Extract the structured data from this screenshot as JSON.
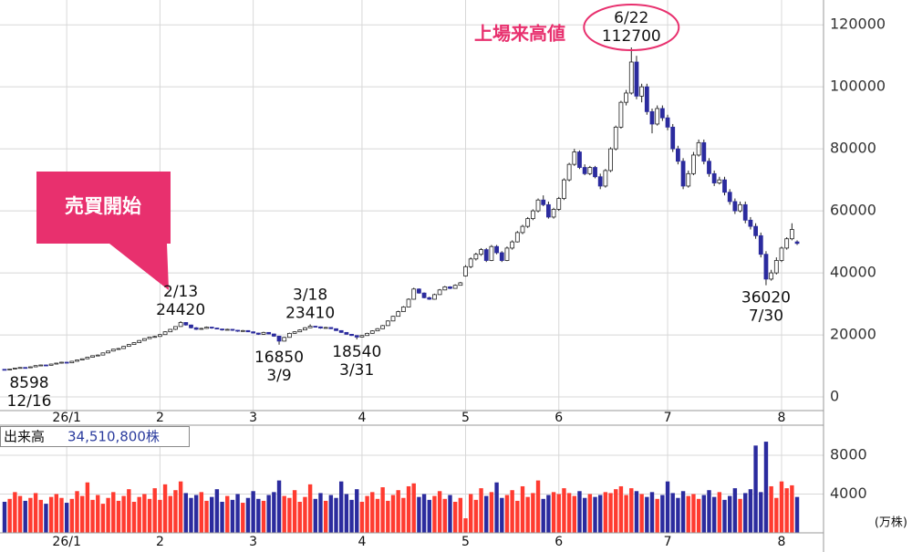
{
  "chart_data": {
    "type": "candlestick",
    "categories": [
      null,
      null,
      null,
      null,
      null,
      null,
      null,
      null,
      null,
      null,
      null,
      null,
      "26/1",
      null,
      null,
      null,
      null,
      null,
      null,
      null,
      null,
      null,
      null,
      null,
      null,
      null,
      null,
      null,
      null,
      null,
      "2",
      null,
      null,
      null,
      null,
      null,
      null,
      null,
      null,
      null,
      null,
      null,
      null,
      null,
      null,
      null,
      null,
      null,
      "3",
      null,
      null,
      null,
      null,
      null,
      null,
      null,
      null,
      null,
      null,
      null,
      null,
      null,
      null,
      null,
      null,
      null,
      null,
      null,
      null,
      "4",
      null,
      null,
      null,
      null,
      null,
      null,
      null,
      null,
      null,
      null,
      null,
      null,
      null,
      null,
      null,
      null,
      null,
      null,
      null,
      "5",
      null,
      null,
      null,
      null,
      null,
      null,
      null,
      null,
      null,
      null,
      null,
      null,
      null,
      null,
      null,
      null,
      null,
      "6",
      null,
      null,
      null,
      null,
      null,
      null,
      null,
      null,
      null,
      null,
      null,
      null,
      null,
      null,
      null,
      null,
      null,
      null,
      null,
      null,
      "7",
      null,
      null,
      null,
      null,
      null,
      null,
      null,
      null,
      null,
      null,
      null,
      null,
      null,
      null,
      null,
      null,
      null,
      null,
      null,
      null,
      null,
      "8",
      null,
      null,
      null
    ],
    "ohlc": [
      [
        8900,
        9000,
        8598,
        8800
      ],
      [
        8800,
        9100,
        8700,
        9000
      ],
      [
        9000,
        9400,
        8950,
        9300
      ],
      [
        9300,
        9600,
        9200,
        9500
      ],
      [
        9500,
        9600,
        9300,
        9400
      ],
      [
        9400,
        9800,
        9350,
        9700
      ],
      [
        9700,
        10200,
        9650,
        10100
      ],
      [
        10100,
        10400,
        10000,
        10300
      ],
      [
        10300,
        10400,
        10100,
        10200
      ],
      [
        10200,
        10700,
        10150,
        10600
      ],
      [
        10600,
        11000,
        10500,
        10900
      ],
      [
        10900,
        11300,
        10800,
        11200
      ],
      [
        11200,
        11300,
        10900,
        11000
      ],
      [
        11000,
        11600,
        10950,
        11500
      ],
      [
        11500,
        12000,
        11400,
        11900
      ],
      [
        11900,
        12400,
        11800,
        12300
      ],
      [
        12300,
        12900,
        12200,
        12800
      ],
      [
        12800,
        13400,
        12700,
        13300
      ],
      [
        13300,
        13700,
        13200,
        13500
      ],
      [
        13500,
        14300,
        13400,
        14200
      ],
      [
        14200,
        14900,
        14100,
        14800
      ],
      [
        14800,
        15500,
        14700,
        15400
      ],
      [
        15400,
        15800,
        15200,
        15600
      ],
      [
        15600,
        16400,
        15500,
        16300
      ],
      [
        16300,
        17000,
        16200,
        16900
      ],
      [
        16900,
        17600,
        16800,
        17500
      ],
      [
        17500,
        18300,
        17400,
        18200
      ],
      [
        18200,
        18900,
        18100,
        18800
      ],
      [
        18800,
        19400,
        18700,
        19300
      ],
      [
        19300,
        19700,
        19100,
        19500
      ],
      [
        19500,
        20300,
        19400,
        20100
      ],
      [
        20100,
        21200,
        20000,
        21000
      ],
      [
        21000,
        21900,
        20900,
        21800
      ],
      [
        21800,
        22800,
        21600,
        22700
      ],
      [
        22700,
        24420,
        22600,
        24000
      ],
      [
        24000,
        24100,
        23000,
        23200
      ],
      [
        23200,
        23300,
        22100,
        22300
      ],
      [
        22300,
        22500,
        21600,
        21800
      ],
      [
        21800,
        22300,
        21700,
        22100
      ],
      [
        22100,
        22700,
        22000,
        22500
      ],
      [
        22500,
        22600,
        22000,
        22200
      ],
      [
        22200,
        22300,
        21800,
        21900
      ],
      [
        21900,
        22000,
        21400,
        21600
      ],
      [
        21600,
        22000,
        21500,
        21800
      ],
      [
        21800,
        21900,
        21300,
        21500
      ],
      [
        21500,
        21600,
        21000,
        21200
      ],
      [
        21200,
        21600,
        21100,
        21400
      ],
      [
        21400,
        21500,
        20900,
        21000
      ],
      [
        21000,
        21100,
        20500,
        20600
      ],
      [
        20600,
        20700,
        20000,
        20200
      ],
      [
        20200,
        21000,
        20100,
        20800
      ],
      [
        20800,
        20900,
        20200,
        20300
      ],
      [
        20300,
        20400,
        19400,
        19600
      ],
      [
        19600,
        19700,
        16850,
        18000
      ],
      [
        18000,
        19400,
        17900,
        19200
      ],
      [
        19200,
        20700,
        19100,
        20500
      ],
      [
        20500,
        21200,
        20400,
        21000
      ],
      [
        21000,
        21800,
        20900,
        21600
      ],
      [
        21600,
        22500,
        21500,
        22300
      ],
      [
        22300,
        23410,
        22200,
        22800
      ],
      [
        22800,
        22900,
        22400,
        22600
      ],
      [
        22600,
        22700,
        22000,
        22200
      ],
      [
        22200,
        22600,
        22100,
        22400
      ],
      [
        22400,
        22500,
        21900,
        22000
      ],
      [
        22000,
        22100,
        21300,
        21400
      ],
      [
        21400,
        21500,
        20700,
        20800
      ],
      [
        20800,
        20900,
        20100,
        20200
      ],
      [
        20200,
        20300,
        19700,
        19800
      ],
      [
        19800,
        19900,
        18540,
        19300
      ],
      [
        19300,
        20000,
        19200,
        19800
      ],
      [
        19800,
        20700,
        19700,
        20500
      ],
      [
        20500,
        21500,
        20400,
        21300
      ],
      [
        21300,
        22200,
        21200,
        22000
      ],
      [
        22000,
        23200,
        21900,
        23000
      ],
      [
        23000,
        24700,
        22900,
        24500
      ],
      [
        24500,
        26200,
        24400,
        26000
      ],
      [
        26000,
        27800,
        25900,
        27500
      ],
      [
        27500,
        29300,
        27400,
        29000
      ],
      [
        29000,
        31800,
        28900,
        31500
      ],
      [
        31500,
        35200,
        31400,
        34800
      ],
      [
        34800,
        35000,
        33300,
        33500
      ],
      [
        33500,
        33700,
        31800,
        32000
      ],
      [
        32000,
        32300,
        31300,
        31500
      ],
      [
        31500,
        33300,
        31400,
        33000
      ],
      [
        33000,
        34800,
        32900,
        34500
      ],
      [
        34500,
        35800,
        34400,
        35500
      ],
      [
        35500,
        35700,
        34800,
        35000
      ],
      [
        35000,
        36300,
        34900,
        36000
      ],
      [
        36000,
        37100,
        35900,
        36800
      ],
      [
        39000,
        42500,
        38800,
        42000
      ],
      [
        42000,
        45000,
        41500,
        44500
      ],
      [
        44500,
        46500,
        44000,
        46000
      ],
      [
        46000,
        48000,
        45500,
        47500
      ],
      [
        47500,
        48000,
        43500,
        44000
      ],
      [
        44000,
        49000,
        43800,
        48500
      ],
      [
        48500,
        49000,
        46000,
        46500
      ],
      [
        46500,
        47000,
        43500,
        44000
      ],
      [
        44000,
        48500,
        43800,
        48000
      ],
      [
        48000,
        50500,
        47500,
        50000
      ],
      [
        50000,
        53500,
        49800,
        53000
      ],
      [
        53000,
        55500,
        52500,
        55000
      ],
      [
        55000,
        58000,
        54500,
        57500
      ],
      [
        57500,
        60500,
        57000,
        60000
      ],
      [
        60000,
        64000,
        59500,
        63500
      ],
      [
        63500,
        65000,
        61500,
        62000
      ],
      [
        62000,
        63000,
        57500,
        58000
      ],
      [
        58000,
        61000,
        57500,
        60500
      ],
      [
        60500,
        64500,
        60000,
        64000
      ],
      [
        64000,
        70500,
        63500,
        70000
      ],
      [
        70000,
        75500,
        69500,
        75000
      ],
      [
        75000,
        80000,
        74500,
        79000
      ],
      [
        79000,
        79500,
        73500,
        74000
      ],
      [
        74000,
        75000,
        71500,
        72000
      ],
      [
        72000,
        74500,
        71500,
        74000
      ],
      [
        74000,
        74500,
        70500,
        71000
      ],
      [
        71000,
        72000,
        67000,
        68000
      ],
      [
        68000,
        73500,
        67500,
        73000
      ],
      [
        73000,
        80500,
        72500,
        80000
      ],
      [
        80000,
        87500,
        79500,
        87000
      ],
      [
        87000,
        95500,
        86500,
        95000
      ],
      [
        95000,
        99000,
        94000,
        98000
      ],
      [
        98000,
        112700,
        97500,
        108000
      ],
      [
        108000,
        110000,
        96000,
        97000
      ],
      [
        97000,
        101000,
        95000,
        100000
      ],
      [
        100000,
        101000,
        91000,
        92000
      ],
      [
        92000,
        93000,
        85000,
        88000
      ],
      [
        88000,
        94000,
        87500,
        93000
      ],
      [
        93000,
        94000,
        89000,
        90000
      ],
      [
        90000,
        91000,
        86000,
        87000
      ],
      [
        87000,
        88000,
        79000,
        80000
      ],
      [
        80000,
        81000,
        75000,
        76000
      ],
      [
        76000,
        77000,
        67000,
        68000
      ],
      [
        68000,
        73000,
        67500,
        72000
      ],
      [
        72000,
        79000,
        71500,
        78000
      ],
      [
        78000,
        83000,
        77500,
        82000
      ],
      [
        82000,
        83000,
        75000,
        76000
      ],
      [
        76000,
        77000,
        71000,
        72000
      ],
      [
        72000,
        73000,
        68000,
        69000
      ],
      [
        69000,
        71000,
        68500,
        70000
      ],
      [
        70000,
        71000,
        65000,
        66000
      ],
      [
        66000,
        67000,
        62000,
        63000
      ],
      [
        63000,
        64000,
        59000,
        60000
      ],
      [
        60000,
        63000,
        59500,
        62000
      ],
      [
        62000,
        63000,
        56000,
        57000
      ],
      [
        57000,
        58000,
        54000,
        55000
      ],
      [
        55000,
        56000,
        51000,
        52000
      ],
      [
        52000,
        53000,
        45000,
        46000
      ],
      [
        46000,
        47000,
        36020,
        38000
      ],
      [
        38000,
        41000,
        37500,
        40000
      ],
      [
        40000,
        45000,
        39500,
        44000
      ],
      [
        44000,
        48500,
        43500,
        48000
      ],
      [
        48000,
        51500,
        47500,
        51000
      ],
      [
        51000,
        56000,
        50500,
        54000
      ],
      [
        50000,
        50500,
        49000,
        49500
      ]
    ],
    "ylim": [
      -4400,
      128000
    ],
    "yticks": [
      0,
      20000,
      40000,
      60000,
      80000,
      100000,
      120000
    ],
    "grid": true,
    "up_color": "#ffffff",
    "down_color": "#2b2b9e",
    "annotations": [
      {
        "date": "12/16",
        "value": 8598
      },
      {
        "date": "2/13",
        "value": 24420
      },
      {
        "date": "3/9",
        "value": 16850
      },
      {
        "date": "3/18",
        "value": 23410
      },
      {
        "date": "3/31",
        "value": 18540
      },
      {
        "date": "6/22",
        "value": 112700
      },
      {
        "date": "7/30",
        "value": 36020
      }
    ],
    "record_label": "上場来高値",
    "callout": "売買開始",
    "volume": {
      "title": "出来高",
      "total_label": "34,510,800株",
      "unit": "(万株)",
      "up_color": "#ff3b30",
      "down_color": "#2b2b9e",
      "ylim": [
        0,
        11100
      ],
      "yticks": [
        4000,
        8000
      ],
      "values": [
        3200,
        3500,
        4200,
        3800,
        3300,
        3600,
        4100,
        3400,
        3000,
        3700,
        4000,
        3600,
        3100,
        3500,
        4300,
        3800,
        5200,
        3400,
        3900,
        3000,
        3600,
        4200,
        3300,
        3800,
        4500,
        3200,
        3700,
        4000,
        3500,
        4600,
        3400,
        5000,
        3800,
        4400,
        5300,
        4100,
        3600,
        3900,
        4200,
        3300,
        3700,
        4500,
        3200,
        3800,
        3400,
        4000,
        3100,
        3600,
        4300,
        3500,
        3300,
        3900,
        4200,
        5400,
        3800,
        3600,
        4400,
        3200,
        3700,
        5000,
        3500,
        4100,
        3300,
        3900,
        3600,
        5300,
        4000,
        3400,
        4500,
        3200,
        3800,
        4200,
        3500,
        4700,
        3300,
        3900,
        4400,
        3600,
        4800,
        5100,
        3700,
        4000,
        3400,
        3800,
        4300,
        3500,
        3900,
        3200,
        3600,
        1500,
        4000,
        3400,
        4600,
        3800,
        4200,
        5200,
        3600,
        3900,
        4400,
        3300,
        4800,
        3700,
        4100,
        5400,
        3500,
        3900,
        4200,
        4000,
        4600,
        4100,
        3800,
        4300,
        3600,
        4000,
        3700,
        3900,
        4200,
        4100,
        4500,
        4800,
        3900,
        4600,
        4300,
        4000,
        3700,
        4200,
        3500,
        3900,
        5300,
        4100,
        3600,
        4300,
        3800,
        4000,
        3500,
        3900,
        4400,
        3700,
        4200,
        3400,
        3800,
        4600,
        3500,
        4100,
        4500,
        9000,
        4200,
        9400,
        4800,
        3600,
        5300,
        4600,
        4900,
        3700
      ]
    }
  }
}
